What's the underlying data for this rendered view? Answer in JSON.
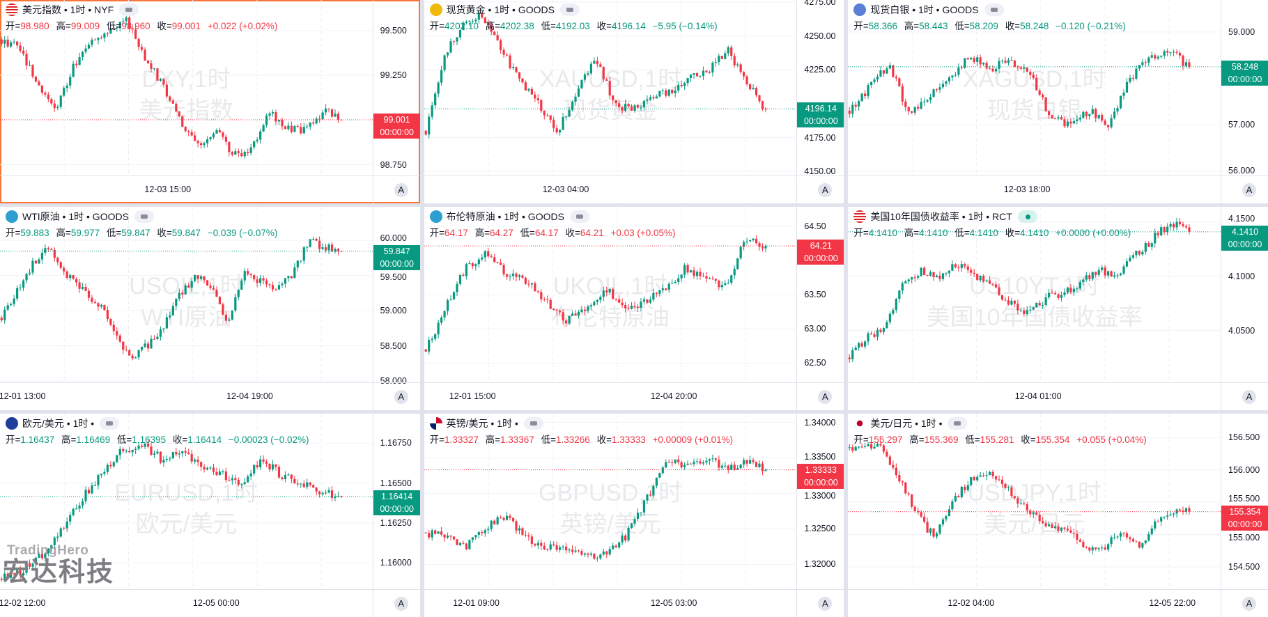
{
  "colors": {
    "up": "#089981",
    "down": "#f23645",
    "selected_border": "#f7743b"
  },
  "logo": {
    "en": "TradingHero",
    "cn": "宏达科技"
  },
  "ohlc_labels": {
    "open": "开=",
    "high": "高=",
    "low": "低=",
    "close": "收="
  },
  "countdown": "00:00:00",
  "axis_button": "A",
  "panels": [
    {
      "title": "美元指数 • 1时 • NYF",
      "icon": "us-flag-icon",
      "status": "pill",
      "selected": true,
      "wm1": "DXY,1时",
      "wm2": "美元指数",
      "open": "98.980",
      "high": "99.009",
      "low": "98.960",
      "close": "99.001",
      "change": "+0.022 (+0.02%)",
      "dir": "down",
      "last": 99.001,
      "last_label": "99.001",
      "y_range": [
        98.69,
        99.67
      ],
      "y_ticks": [
        {
          "v": 99.5,
          "t": "99.500"
        },
        {
          "v": 99.25,
          "t": "99.250"
        },
        {
          "v": 98.75,
          "t": "98.750"
        }
      ],
      "x_ticks": [
        "12-03 15:00"
      ],
      "path": [
        99.45,
        99.4,
        99.2,
        99.05,
        99.3,
        99.45,
        99.5,
        99.55,
        99.35,
        99.2,
        99.0,
        98.85,
        98.95,
        98.8,
        98.85,
        99.05,
        98.95,
        98.95,
        99.05,
        99.001
      ]
    },
    {
      "title": "现货黄金 • 1时 • GOODS",
      "icon": "gold-icon",
      "status": "pill",
      "wm1": "XAUUSD,1时",
      "wm2": "现货黄金",
      "open": "4202.10",
      "high": "4202.38",
      "low": "4192.03",
      "close": "4196.14",
      "change": "−5.95 (−0.14%)",
      "dir": "up",
      "last": 4196.14,
      "last_label": "4196.14",
      "y_range": [
        4147,
        4276.5
      ],
      "y_ticks": [
        {
          "v": 4275,
          "t": "4275.00"
        },
        {
          "v": 4250,
          "t": "4250.00"
        },
        {
          "v": 4225,
          "t": "4225.00"
        },
        {
          "v": 4175,
          "t": "4175.00"
        },
        {
          "v": 4150,
          "t": "4150.00"
        }
      ],
      "x_ticks": [
        "12-03 04:00"
      ],
      "path": [
        4180,
        4235,
        4260,
        4265,
        4240,
        4215,
        4200,
        4180,
        4210,
        4235,
        4200,
        4195,
        4205,
        4210,
        4220,
        4225,
        4240,
        4215,
        4196.14
      ]
    },
    {
      "title": "现货白银 • 1时 • GOODS",
      "icon": "silver-icon",
      "status": "pill",
      "wm1": "XAGUSD,1时",
      "wm2": "现货白银",
      "open": "58.366",
      "high": "58.443",
      "low": "58.209",
      "close": "58.248",
      "change": "−0.120 (−0.21%)",
      "dir": "up",
      "last": 58.248,
      "last_label": "58.248",
      "y_range": [
        55.9,
        59.69
      ],
      "y_ticks": [
        {
          "v": 59,
          "t": "59.000"
        },
        {
          "v": 57,
          "t": "57.000"
        },
        {
          "v": 56,
          "t": "56.000"
        }
      ],
      "x_ticks": [
        "12-03 18:00"
      ],
      "path": [
        57.3,
        57.8,
        58.3,
        57.2,
        57.6,
        58.0,
        58.5,
        58.2,
        58.4,
        58.1,
        57.2,
        57.0,
        57.3,
        57.0,
        58.0,
        58.4,
        58.6,
        58.248
      ]
    },
    {
      "title": "WTI原油 • 1时 • GOODS",
      "icon": "oil-icon",
      "status": "pill",
      "wm1": "USOIL,1时",
      "wm2": "WTI原油",
      "open": "59.883",
      "high": "59.977",
      "low": "59.847",
      "close": "59.847",
      "change": "−0.039 (−0.07%)",
      "dir": "up",
      "last": 59.847,
      "last_label": "59.847",
      "y_range": [
        57.98,
        60.477
      ],
      "y_ticks": [
        {
          "v": 60,
          "t": "60.000"
        },
        {
          "v": 59.5,
          "t": "59.500"
        },
        {
          "v": 59,
          "t": "59.000"
        },
        {
          "v": 58.5,
          "t": "58.500"
        },
        {
          "v": 58,
          "t": "58.000"
        }
      ],
      "x_ticks": [
        "12-01 13:00",
        "12-04 19:00"
      ],
      "path": [
        58.9,
        59.3,
        59.7,
        59.9,
        59.5,
        59.3,
        59.1,
        58.7,
        58.3,
        58.5,
        58.8,
        59.2,
        59.5,
        59.3,
        58.8,
        59.6,
        59.4,
        59.3,
        59.5,
        60.0,
        59.9,
        59.847
      ]
    },
    {
      "title": "布伦特原油 • 1时 • GOODS",
      "icon": "oil-icon",
      "status": "pill",
      "wm1": "UKOIL,1时",
      "wm2": "布伦特原油",
      "open": "64.17",
      "high": "64.27",
      "low": "64.17",
      "close": "64.21",
      "change": "+0.03 (+0.05%)",
      "dir": "down",
      "last": 64.21,
      "last_label": "64.21",
      "y_range": [
        62.22,
        64.78
      ],
      "y_ticks": [
        {
          "v": 64.5,
          "t": "64.50"
        },
        {
          "v": 63.5,
          "t": "63.50"
        },
        {
          "v": 63,
          "t": "63.00"
        },
        {
          "v": 62.5,
          "t": "62.50"
        }
      ],
      "x_ticks": [
        "12-01 15:00",
        "12-04 20:00"
      ],
      "path": [
        62.7,
        63.3,
        63.9,
        64.1,
        63.8,
        63.7,
        63.4,
        63.1,
        63.3,
        63.6,
        63.3,
        63.4,
        63.6,
        63.9,
        63.7,
        63.65,
        64.3,
        64.21
      ]
    },
    {
      "title": "美国10年国债收益率 • 1时 • RCT",
      "icon": "us-flag-icon",
      "status": "live",
      "wm1": "US10YT,1时",
      "wm2": "美国10年国债收益率",
      "open": "4.1410",
      "high": "4.1410",
      "low": "4.1410",
      "close": "4.1410",
      "change": "+0.0000 (+0.00%)",
      "dir": "up",
      "last": 4.141,
      "last_label": "4.1410",
      "y_range": [
        4.0022,
        4.164
      ],
      "y_ticks": [
        {
          "v": 4.15,
          "t": "4.1500"
        },
        {
          "v": 4.1,
          "t": "4.1000"
        },
        {
          "v": 4.05,
          "t": "4.0500"
        }
      ],
      "x_ticks": [
        "12-04 01:00"
      ],
      "path": [
        4.025,
        4.045,
        4.05,
        4.095,
        4.105,
        4.1,
        4.11,
        4.1,
        4.09,
        4.075,
        4.065,
        4.08,
        4.085,
        4.095,
        4.105,
        4.1,
        4.12,
        4.135,
        4.15,
        4.141
      ]
    },
    {
      "title": "欧元/美元 • 1时 •",
      "icon": "eu-us-flag-icon",
      "status": "pill",
      "wm1": "EURUSD,1时",
      "wm2": "欧元/美元",
      "open": "1.16437",
      "high": "1.16469",
      "low": "1.16395",
      "close": "1.16414",
      "change": "−0.00023 (−0.02%)",
      "dir": "up",
      "last": 1.16414,
      "last_label": "1.16414",
      "y_range": [
        1.15835,
        1.16935
      ],
      "y_ticks": [
        {
          "v": 1.1675,
          "t": "1.16750"
        },
        {
          "v": 1.165,
          "t": "1.16500"
        },
        {
          "v": 1.1625,
          "t": "1.16250"
        },
        {
          "v": 1.16,
          "t": "1.16000"
        }
      ],
      "x_ticks": [
        "12-02 12:00",
        "12-05 00:00"
      ],
      "path": [
        1.159,
        1.1595,
        1.1605,
        1.162,
        1.164,
        1.1655,
        1.167,
        1.1675,
        1.1665,
        1.167,
        1.166,
        1.1655,
        1.165,
        1.1665,
        1.1655,
        1.165,
        1.1645,
        1.16414
      ]
    },
    {
      "title": "英镑/美元 • 1时 •",
      "icon": "uk-us-flag-icon",
      "status": "pill",
      "wm1": "GBPUSD,1时",
      "wm2": "英镑/美元",
      "open": "1.33327",
      "high": "1.33367",
      "low": "1.33266",
      "close": "1.33333",
      "change": "+0.00009 (+0.01%)",
      "dir": "down",
      "last": 1.33333,
      "last_label": "1.33333",
      "y_range": [
        1.31651,
        1.34124
      ],
      "y_ticks": [
        {
          "v": 1.34,
          "t": "1.34000"
        },
        {
          "v": 1.335,
          "t": "1.33500"
        },
        {
          "v": 1.33,
          "t": "1.33000"
        },
        {
          "v": 1.325,
          "t": "1.32500"
        },
        {
          "v": 1.32,
          "t": "1.32000"
        }
      ],
      "x_ticks": [
        "12-01 09:00",
        "12-05 03:00"
      ],
      "path": [
        1.3245,
        1.324,
        1.3225,
        1.325,
        1.327,
        1.3235,
        1.3225,
        1.322,
        1.321,
        1.3215,
        1.324,
        1.329,
        1.3345,
        1.334,
        1.335,
        1.3335,
        1.3345,
        1.33333
      ]
    },
    {
      "title": "美元/日元 • 1时 •",
      "icon": "us-jp-flag-icon",
      "status": "pill",
      "wm1": "USDJPY,1时",
      "wm2": "美元/日元",
      "open": "155.297",
      "high": "155.369",
      "low": "155.281",
      "close": "155.354",
      "change": "+0.055 (+0.04%)",
      "dir": "down",
      "last": 155.354,
      "last_label": "155.354",
      "y_range": [
        154.155,
        156.87
      ],
      "y_ticks": [
        {
          "v": 156.5,
          "t": "156.500"
        },
        {
          "v": 156,
          "t": "156.000"
        },
        {
          "v": 155.5,
          "t": "155.500"
        },
        {
          "v": 155,
          "t": "155.000"
        },
        {
          "v": 154.5,
          "t": "154.500"
        }
      ],
      "x_ticks": [
        "12-02 04:00",
        "12-05 22:00"
      ],
      "path": [
        156.35,
        156.4,
        156.3,
        155.8,
        155.3,
        154.95,
        155.5,
        155.8,
        155.95,
        155.8,
        155.5,
        155.3,
        155.1,
        155.0,
        154.75,
        154.8,
        155.1,
        154.8,
        155.2,
        155.35,
        155.354
      ]
    }
  ]
}
